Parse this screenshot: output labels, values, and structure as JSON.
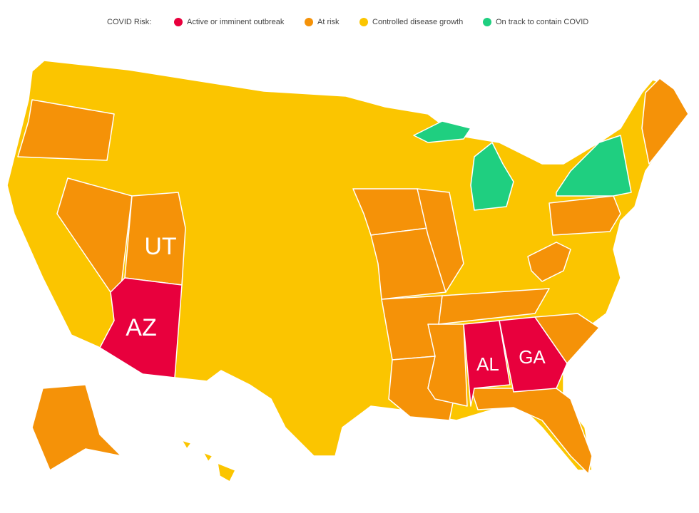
{
  "legend": {
    "title": "COVID Risk:",
    "items": [
      {
        "label": "Active or imminent outbreak",
        "color": "#e8003d"
      },
      {
        "label": "At risk",
        "color": "#f59208"
      },
      {
        "label": "Controlled disease growth",
        "color": "#fbc500"
      },
      {
        "label": "On track to contain COVID",
        "color": "#1fcf80"
      }
    ]
  },
  "labels": [
    {
      "text": "UT"
    },
    {
      "text": "AZ"
    },
    {
      "text": "AL"
    },
    {
      "text": "GA"
    }
  ]
}
